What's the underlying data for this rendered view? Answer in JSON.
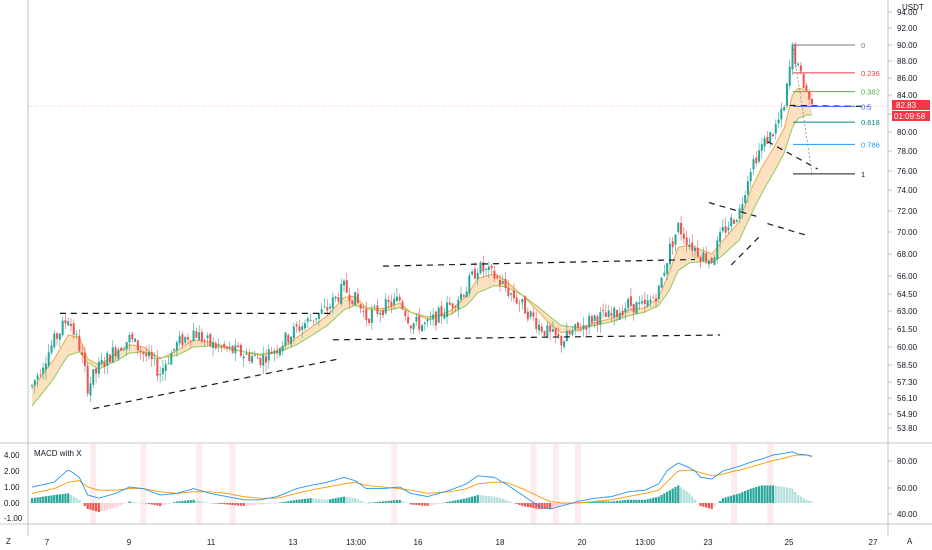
{
  "chart_data": {
    "type": "candlestick",
    "currency": "USDT",
    "price_axis": {
      "min": 53,
      "max": 95,
      "ticks": [
        "94.00",
        "92.00",
        "90.00",
        "88.00",
        "86.00",
        "84.00",
        "82.00",
        "80.00",
        "78.00",
        "76.00",
        "74.00",
        "72.00",
        "70.00",
        "68.00",
        "66.00",
        "64.50",
        "63.00",
        "61.50",
        "60.00",
        "58.50",
        "57.30",
        "56.10",
        "54.90",
        "53.80"
      ]
    },
    "x_axis": {
      "labels": [
        "7",
        "9",
        "11",
        "13",
        "13:00",
        "16",
        "18",
        "20",
        "13:00",
        "23",
        "25",
        "27"
      ]
    },
    "last_price": "82.83",
    "countdown": "01:09:58",
    "fibonacci": [
      {
        "level": "0",
        "price": 90.0,
        "color": "#787b86"
      },
      {
        "level": "0.236",
        "price": 86.6,
        "color": "#f23645"
      },
      {
        "level": "0.382",
        "price": 84.4,
        "color": "#4caf50"
      },
      {
        "level": "0.5",
        "price": 82.8,
        "color": "#2962ff"
      },
      {
        "level": "0.618",
        "price": 81.1,
        "color": "#00897b"
      },
      {
        "level": "0.786",
        "price": 78.7,
        "color": "#2196f3"
      },
      {
        "level": "1",
        "price": 75.7,
        "color": "#131722"
      }
    ],
    "candles_anchor": [
      [
        0,
        57.0
      ],
      [
        8,
        60.5
      ],
      [
        13,
        62.5
      ],
      [
        17,
        60.0
      ],
      [
        20,
        57.0
      ],
      [
        24,
        58.3
      ],
      [
        30,
        59.8
      ],
      [
        35,
        60.7
      ],
      [
        40,
        59.5
      ],
      [
        46,
        58.0
      ],
      [
        52,
        60.2
      ],
      [
        58,
        61.3
      ],
      [
        64,
        60.2
      ],
      [
        70,
        59.8
      ],
      [
        76,
        59.4
      ],
      [
        82,
        59.0
      ],
      [
        88,
        60.0
      ],
      [
        95,
        61.5
      ],
      [
        100,
        62.3
      ],
      [
        106,
        63.2
      ],
      [
        112,
        65.0
      ],
      [
        116,
        64.0
      ],
      [
        120,
        62.5
      ],
      [
        126,
        63.3
      ],
      [
        132,
        64.0
      ],
      [
        136,
        62.0
      ],
      [
        142,
        61.8
      ],
      [
        150,
        63.5
      ],
      [
        156,
        65.0
      ],
      [
        160,
        66.8
      ],
      [
        166,
        66.0
      ],
      [
        170,
        65.0
      ],
      [
        176,
        63.5
      ],
      [
        182,
        61.8
      ],
      [
        186,
        61.0
      ],
      [
        190,
        60.5
      ],
      [
        196,
        61.5
      ],
      [
        202,
        62.5
      ],
      [
        208,
        62.5
      ],
      [
        214,
        63.6
      ],
      [
        220,
        63.3
      ],
      [
        225,
        64.8
      ],
      [
        229,
        68.5
      ],
      [
        232,
        70.5
      ],
      [
        236,
        69.0
      ],
      [
        240,
        68.0
      ],
      [
        244,
        67.5
      ],
      [
        248,
        70.0
      ],
      [
        254,
        72.0
      ],
      [
        258,
        76.5
      ],
      [
        262,
        78.5
      ],
      [
        266,
        80.0
      ],
      [
        270,
        82.5
      ],
      [
        273,
        89.5
      ],
      [
        275,
        87.0
      ],
      [
        278,
        84.5
      ],
      [
        280,
        82.8
      ]
    ],
    "ema_fast": [
      [
        0,
        56.8
      ],
      [
        8,
        59.0
      ],
      [
        13,
        61.0
      ],
      [
        17,
        60.8
      ],
      [
        20,
        59.0
      ],
      [
        24,
        58.5
      ],
      [
        30,
        59.4
      ],
      [
        35,
        60.2
      ],
      [
        40,
        60.0
      ],
      [
        46,
        59.0
      ],
      [
        52,
        59.7
      ],
      [
        58,
        60.6
      ],
      [
        64,
        60.4
      ],
      [
        70,
        60.0
      ],
      [
        76,
        59.6
      ],
      [
        82,
        59.3
      ],
      [
        88,
        59.7
      ],
      [
        95,
        60.8
      ],
      [
        100,
        61.6
      ],
      [
        106,
        62.6
      ],
      [
        112,
        64.2
      ],
      [
        116,
        64.3
      ],
      [
        120,
        63.3
      ],
      [
        126,
        63.2
      ],
      [
        132,
        63.7
      ],
      [
        136,
        62.9
      ],
      [
        142,
        62.3
      ],
      [
        150,
        63.0
      ],
      [
        156,
        64.3
      ],
      [
        160,
        65.8
      ],
      [
        166,
        66.2
      ],
      [
        170,
        65.6
      ],
      [
        176,
        64.4
      ],
      [
        182,
        62.9
      ],
      [
        186,
        61.9
      ],
      [
        190,
        61.2
      ],
      [
        196,
        61.4
      ],
      [
        202,
        62.0
      ],
      [
        208,
        62.4
      ],
      [
        214,
        63.1
      ],
      [
        220,
        63.3
      ],
      [
        225,
        64.2
      ],
      [
        229,
        66.5
      ],
      [
        232,
        68.6
      ],
      [
        236,
        68.8
      ],
      [
        240,
        68.4
      ],
      [
        244,
        68.0
      ],
      [
        248,
        69.2
      ],
      [
        254,
        71.0
      ],
      [
        258,
        74.0
      ],
      [
        262,
        76.4
      ],
      [
        266,
        78.2
      ],
      [
        270,
        80.4
      ],
      [
        273,
        84.0
      ],
      [
        275,
        84.8
      ],
      [
        278,
        84.6
      ],
      [
        280,
        84.0
      ]
    ],
    "ema_slow": [
      [
        0,
        55.5
      ],
      [
        8,
        57.6
      ],
      [
        13,
        59.3
      ],
      [
        17,
        59.6
      ],
      [
        20,
        58.7
      ],
      [
        24,
        58.2
      ],
      [
        30,
        58.8
      ],
      [
        35,
        59.5
      ],
      [
        40,
        59.6
      ],
      [
        46,
        59.1
      ],
      [
        52,
        59.3
      ],
      [
        58,
        60.0
      ],
      [
        64,
        60.1
      ],
      [
        70,
        59.9
      ],
      [
        76,
        59.6
      ],
      [
        82,
        59.4
      ],
      [
        88,
        59.5
      ],
      [
        95,
        60.2
      ],
      [
        100,
        60.9
      ],
      [
        106,
        61.8
      ],
      [
        112,
        63.1
      ],
      [
        116,
        63.5
      ],
      [
        120,
        63.2
      ],
      [
        126,
        63.0
      ],
      [
        132,
        63.3
      ],
      [
        136,
        62.9
      ],
      [
        142,
        62.5
      ],
      [
        150,
        62.7
      ],
      [
        156,
        63.5
      ],
      [
        160,
        64.6
      ],
      [
        166,
        65.2
      ],
      [
        170,
        65.1
      ],
      [
        176,
        64.4
      ],
      [
        182,
        63.3
      ],
      [
        186,
        62.5
      ],
      [
        190,
        61.8
      ],
      [
        196,
        61.6
      ],
      [
        202,
        61.8
      ],
      [
        208,
        62.1
      ],
      [
        214,
        62.6
      ],
      [
        220,
        62.9
      ],
      [
        225,
        63.5
      ],
      [
        229,
        64.9
      ],
      [
        232,
        66.5
      ],
      [
        236,
        67.2
      ],
      [
        240,
        67.3
      ],
      [
        244,
        67.2
      ],
      [
        248,
        67.9
      ],
      [
        254,
        69.3
      ],
      [
        258,
        71.6
      ],
      [
        262,
        73.7
      ],
      [
        266,
        75.7
      ],
      [
        270,
        77.8
      ],
      [
        273,
        80.5
      ],
      [
        275,
        81.5
      ],
      [
        278,
        81.9
      ],
      [
        280,
        81.9
      ]
    ],
    "patterns": [
      {
        "type": "horizontal",
        "from": [
          10,
          62.8
        ],
        "to": [
          108,
          62.8
        ]
      },
      {
        "type": "trend",
        "from": [
          22,
          55.3
        ],
        "to": [
          110,
          59.0
        ]
      },
      {
        "type": "horizontal",
        "from": [
          126,
          66.9
        ],
        "to": [
          238,
          67.5
        ]
      },
      {
        "type": "trend",
        "from": [
          108,
          60.6
        ],
        "to": [
          247,
          61.0
        ]
      },
      {
        "type": "trend",
        "from": [
          243,
          72.8
        ],
        "to": [
          260,
          71.5
        ]
      },
      {
        "type": "trend",
        "from": [
          251,
          67.0
        ],
        "to": [
          262,
          69.8
        ]
      },
      {
        "type": "trend",
        "from": [
          264,
          70.8
        ],
        "to": [
          278,
          69.7
        ]
      },
      {
        "type": "trend",
        "from": [
          264,
          79.0
        ],
        "to": [
          282,
          76.2
        ]
      },
      {
        "type": "horizontal",
        "from": [
          272,
          82.9
        ],
        "to": [
          300,
          82.8
        ]
      }
    ],
    "macd": {
      "title": "MACD with X",
      "left_ticks": [
        "4.00",
        "2.00",
        "1.00",
        "0.00",
        "-1.00"
      ],
      "right_ticks": [
        "80.00",
        "60.00",
        "40.00"
      ],
      "histogram_anchor": [
        [
          0,
          0.3
        ],
        [
          8,
          0.5
        ],
        [
          13,
          0.6
        ],
        [
          17,
          0.2
        ],
        [
          20,
          -0.4
        ],
        [
          24,
          -0.6
        ],
        [
          30,
          -0.3
        ],
        [
          35,
          0.1
        ],
        [
          40,
          0.0
        ],
        [
          46,
          -0.2
        ],
        [
          52,
          0.1
        ],
        [
          58,
          0.2
        ],
        [
          64,
          0.0
        ],
        [
          70,
          -0.1
        ],
        [
          76,
          -0.2
        ],
        [
          82,
          -0.1
        ],
        [
          88,
          0.0
        ],
        [
          95,
          0.2
        ],
        [
          100,
          0.3
        ],
        [
          106,
          0.2
        ],
        [
          112,
          0.4
        ],
        [
          116,
          0.3
        ],
        [
          120,
          0.0
        ],
        [
          126,
          0.1
        ],
        [
          132,
          0.2
        ],
        [
          136,
          -0.1
        ],
        [
          142,
          -0.2
        ],
        [
          150,
          0.1
        ],
        [
          156,
          0.3
        ],
        [
          160,
          0.5
        ],
        [
          166,
          0.4
        ],
        [
          170,
          0.2
        ],
        [
          176,
          -0.2
        ],
        [
          182,
          -0.4
        ],
        [
          186,
          -0.4
        ],
        [
          190,
          -0.2
        ],
        [
          196,
          0.0
        ],
        [
          202,
          0.1
        ],
        [
          208,
          0.1
        ],
        [
          214,
          0.2
        ],
        [
          220,
          0.2
        ],
        [
          225,
          0.4
        ],
        [
          229,
          0.8
        ],
        [
          232,
          1.1
        ],
        [
          236,
          0.6
        ],
        [
          240,
          -0.2
        ],
        [
          244,
          -0.4
        ],
        [
          248,
          0.3
        ],
        [
          254,
          0.6
        ],
        [
          258,
          0.9
        ],
        [
          262,
          1.1
        ],
        [
          266,
          1.1
        ],
        [
          270,
          1.0
        ],
        [
          273,
          0.9
        ],
        [
          275,
          0.5
        ],
        [
          278,
          0.2
        ],
        [
          280,
          0.1
        ]
      ],
      "macd_line": [
        [
          0,
          1.0
        ],
        [
          8,
          1.3
        ],
        [
          13,
          2.1
        ],
        [
          17,
          1.6
        ],
        [
          20,
          0.5
        ],
        [
          24,
          0.3
        ],
        [
          30,
          0.6
        ],
        [
          35,
          1.0
        ],
        [
          40,
          0.9
        ],
        [
          46,
          0.5
        ],
        [
          52,
          0.6
        ],
        [
          58,
          0.9
        ],
        [
          64,
          0.6
        ],
        [
          70,
          0.4
        ],
        [
          76,
          0.2
        ],
        [
          82,
          0.2
        ],
        [
          88,
          0.4
        ],
        [
          95,
          0.9
        ],
        [
          100,
          1.1
        ],
        [
          106,
          1.3
        ],
        [
          112,
          1.6
        ],
        [
          116,
          1.4
        ],
        [
          120,
          0.9
        ],
        [
          126,
          0.9
        ],
        [
          132,
          1.0
        ],
        [
          136,
          0.6
        ],
        [
          142,
          0.4
        ],
        [
          150,
          0.8
        ],
        [
          156,
          1.2
        ],
        [
          160,
          1.7
        ],
        [
          166,
          1.6
        ],
        [
          170,
          1.2
        ],
        [
          176,
          0.5
        ],
        [
          182,
          -0.2
        ],
        [
          186,
          -0.4
        ],
        [
          190,
          -0.2
        ],
        [
          196,
          0.1
        ],
        [
          202,
          0.3
        ],
        [
          208,
          0.4
        ],
        [
          214,
          0.7
        ],
        [
          220,
          0.8
        ],
        [
          225,
          1.2
        ],
        [
          229,
          2.3
        ],
        [
          232,
          3.0
        ],
        [
          236,
          2.4
        ],
        [
          240,
          1.6
        ],
        [
          244,
          1.5
        ],
        [
          248,
          2.0
        ],
        [
          254,
          2.6
        ],
        [
          258,
          3.1
        ],
        [
          262,
          3.5
        ],
        [
          266,
          4.0
        ],
        [
          270,
          4.2
        ],
        [
          273,
          4.4
        ],
        [
          275,
          4.1
        ],
        [
          278,
          4.0
        ],
        [
          280,
          3.8
        ]
      ],
      "signal_line": [
        [
          0,
          0.6
        ],
        [
          8,
          0.9
        ],
        [
          13,
          1.3
        ],
        [
          17,
          1.4
        ],
        [
          20,
          1.0
        ],
        [
          24,
          0.8
        ],
        [
          30,
          0.8
        ],
        [
          35,
          0.9
        ],
        [
          40,
          0.9
        ],
        [
          46,
          0.7
        ],
        [
          52,
          0.6
        ],
        [
          58,
          0.7
        ],
        [
          64,
          0.7
        ],
        [
          70,
          0.6
        ],
        [
          76,
          0.4
        ],
        [
          82,
          0.3
        ],
        [
          88,
          0.3
        ],
        [
          95,
          0.6
        ],
        [
          100,
          0.8
        ],
        [
          106,
          1.0
        ],
        [
          112,
          1.2
        ],
        [
          116,
          1.3
        ],
        [
          120,
          1.1
        ],
        [
          126,
          1.0
        ],
        [
          132,
          0.9
        ],
        [
          136,
          0.8
        ],
        [
          142,
          0.6
        ],
        [
          150,
          0.7
        ],
        [
          156,
          0.9
        ],
        [
          160,
          1.2
        ],
        [
          166,
          1.3
        ],
        [
          170,
          1.3
        ],
        [
          176,
          0.9
        ],
        [
          182,
          0.4
        ],
        [
          186,
          0.1
        ],
        [
          190,
          0.0
        ],
        [
          196,
          0.0
        ],
        [
          202,
          0.1
        ],
        [
          208,
          0.2
        ],
        [
          214,
          0.4
        ],
        [
          220,
          0.6
        ],
        [
          225,
          0.8
        ],
        [
          229,
          1.5
        ],
        [
          232,
          2.0
        ],
        [
          236,
          2.1
        ],
        [
          240,
          1.9
        ],
        [
          244,
          1.7
        ],
        [
          248,
          1.8
        ],
        [
          254,
          2.1
        ],
        [
          258,
          2.5
        ],
        [
          262,
          2.9
        ],
        [
          266,
          3.3
        ],
        [
          270,
          3.6
        ],
        [
          273,
          3.9
        ],
        [
          275,
          4.0
        ],
        [
          278,
          4.0
        ],
        [
          280,
          3.9
        ]
      ],
      "highlight_bars": [
        22,
        40,
        60,
        72,
        130,
        180,
        188,
        196,
        252,
        265
      ]
    }
  }
}
